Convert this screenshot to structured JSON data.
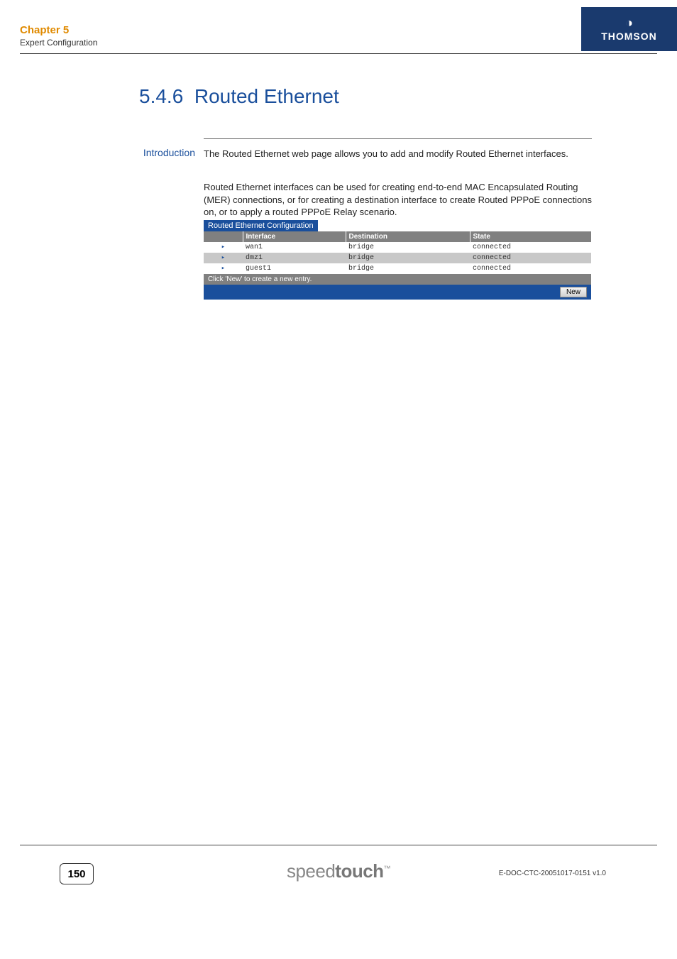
{
  "header": {
    "chapter": "Chapter 5",
    "chapter_sub": "Expert Configuration",
    "brand": "THOMSON"
  },
  "section": {
    "number": "5.4.6",
    "title": "Routed Ethernet"
  },
  "intro": {
    "label": "Introduction",
    "p1": "The Routed Ethernet web page allows you to add and modify Routed Ethernet interfaces.",
    "p2": "Routed Ethernet interfaces can be used for creating end-to-end MAC Encapsulated Routing (MER) connections, or for creating a destination interface to create Routed PPPoE connections on, or to apply a routed PPPoE Relay scenario."
  },
  "config": {
    "title": "Routed Ethernet Configuration",
    "columns": {
      "icon": "",
      "interface": "Interface",
      "destination": "Destination",
      "state": "State"
    },
    "rows": [
      {
        "interface": "wan1",
        "destination": "bridge",
        "state": "connected"
      },
      {
        "interface": "dmz1",
        "destination": "bridge",
        "state": "connected"
      },
      {
        "interface": "guest1",
        "destination": "bridge",
        "state": "connected"
      }
    ],
    "hint": "Click 'New' to create a new entry.",
    "new_btn": "New"
  },
  "footer": {
    "page": "150",
    "logo_light": "speed",
    "logo_bold": "touch",
    "tm": "™",
    "docid": "E-DOC-CTC-20051017-0151 v1.0"
  },
  "colors": {
    "orange": "#e08a00",
    "blue": "#1a4f9c",
    "navy": "#1a3a6e",
    "grey_header": "#808080",
    "row_alt": "#c8c8c8"
  }
}
